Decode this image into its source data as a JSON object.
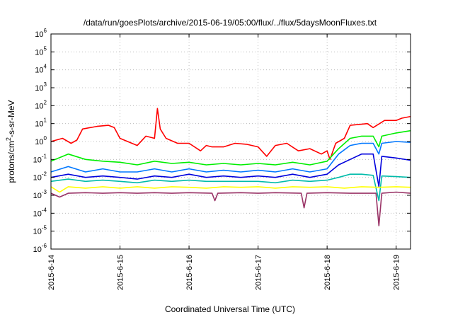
{
  "chart_data": {
    "type": "line",
    "title": "/data/run/goesPlots/archive/2015-06-19/05:00/flux/../flux/5daysMoonFluxes.txt",
    "xlabel": "Coordinated Universal Time (UTC)",
    "ylabel": "protons/cm²-s-sr-MeV",
    "yscale": "log",
    "ylim_exp": [
      -6,
      6
    ],
    "y_ticks": [
      {
        "exp": -6,
        "base": "10",
        "sup": "-6"
      },
      {
        "exp": -5,
        "base": "10",
        "sup": "-5"
      },
      {
        "exp": -4,
        "base": "10",
        "sup": "-4"
      },
      {
        "exp": -3,
        "base": "10",
        "sup": "-3"
      },
      {
        "exp": -2,
        "base": "10",
        "sup": "-2"
      },
      {
        "exp": -1,
        "base": "10",
        "sup": "-1"
      },
      {
        "exp": 0,
        "base": "10",
        "sup": "0"
      },
      {
        "exp": 1,
        "base": "10",
        "sup": "1"
      },
      {
        "exp": 2,
        "base": "10",
        "sup": "2"
      },
      {
        "exp": 3,
        "base": "10",
        "sup": "3"
      },
      {
        "exp": 4,
        "base": "10",
        "sup": "4"
      },
      {
        "exp": 5,
        "base": "10",
        "sup": "5"
      },
      {
        "exp": 6,
        "base": "10",
        "sup": "6"
      }
    ],
    "x_ticks": [
      "2015-6-14",
      "2015-6-15",
      "2015-6-16",
      "2015-6-17",
      "2015-6-18",
      "2015-6-19"
    ],
    "xlim": [
      "2015-06-14 00:00",
      "2015-06-19 05:00"
    ],
    "grid": true,
    "legend": "none",
    "series": [
      {
        "color": "#ff0000",
        "points": [
          [
            "2015-06-14 00:00",
            1.0
          ],
          [
            "2015-06-14 04:00",
            1.5
          ],
          [
            "2015-06-14 07:00",
            0.8
          ],
          [
            "2015-06-14 09:00",
            1.2
          ],
          [
            "2015-06-14 11:00",
            5
          ],
          [
            "2015-06-14 16:00",
            7
          ],
          [
            "2015-06-14 20:00",
            8
          ],
          [
            "2015-06-14 22:00",
            6
          ],
          [
            "2015-06-15 00:00",
            1.5
          ],
          [
            "2015-06-15 06:00",
            0.6
          ],
          [
            "2015-06-15 09:00",
            2
          ],
          [
            "2015-06-15 12:00",
            1.5
          ],
          [
            "2015-06-15 13:00",
            70
          ],
          [
            "2015-06-15 14:00",
            5
          ],
          [
            "2015-06-15 16:00",
            1.5
          ],
          [
            "2015-06-15 20:00",
            0.8
          ],
          [
            "2015-06-16 00:00",
            0.8
          ],
          [
            "2015-06-16 04:00",
            0.3
          ],
          [
            "2015-06-16 06:00",
            0.6
          ],
          [
            "2015-06-16 08:00",
            0.5
          ],
          [
            "2015-06-16 12:00",
            0.5
          ],
          [
            "2015-06-16 16:00",
            0.8
          ],
          [
            "2015-06-16 20:00",
            0.7
          ],
          [
            "2015-06-17 00:00",
            0.5
          ],
          [
            "2015-06-17 03:00",
            0.15
          ],
          [
            "2015-06-17 06:00",
            0.6
          ],
          [
            "2015-06-17 10:00",
            0.8
          ],
          [
            "2015-06-17 14:00",
            0.3
          ],
          [
            "2015-06-17 18:00",
            0.4
          ],
          [
            "2015-06-17 22:00",
            0.2
          ],
          [
            "2015-06-18 00:00",
            0.3
          ],
          [
            "2015-06-18 01:00",
            0.1
          ],
          [
            "2015-06-18 03:00",
            0.8
          ],
          [
            "2015-06-18 06:00",
            1.5
          ],
          [
            "2015-06-18 08:00",
            8
          ],
          [
            "2015-06-18 14:00",
            10
          ],
          [
            "2015-06-18 16:00",
            6
          ],
          [
            "2015-06-18 20:00",
            15
          ],
          [
            "2015-06-19 00:00",
            15
          ],
          [
            "2015-06-19 02:00",
            20
          ],
          [
            "2015-06-19 05:00",
            25
          ]
        ]
      },
      {
        "color": "#00ee00",
        "points": [
          [
            "2015-06-14 00:00",
            0.08
          ],
          [
            "2015-06-14 06:00",
            0.2
          ],
          [
            "2015-06-14 12:00",
            0.1
          ],
          [
            "2015-06-14 18:00",
            0.08
          ],
          [
            "2015-06-15 00:00",
            0.07
          ],
          [
            "2015-06-15 06:00",
            0.05
          ],
          [
            "2015-06-15 12:00",
            0.08
          ],
          [
            "2015-06-15 18:00",
            0.06
          ],
          [
            "2015-06-16 00:00",
            0.07
          ],
          [
            "2015-06-16 06:00",
            0.05
          ],
          [
            "2015-06-16 12:00",
            0.06
          ],
          [
            "2015-06-16 18:00",
            0.05
          ],
          [
            "2015-06-17 00:00",
            0.06
          ],
          [
            "2015-06-17 06:00",
            0.05
          ],
          [
            "2015-06-17 12:00",
            0.07
          ],
          [
            "2015-06-17 18:00",
            0.05
          ],
          [
            "2015-06-18 00:00",
            0.08
          ],
          [
            "2015-06-18 04:00",
            0.4
          ],
          [
            "2015-06-18 08:00",
            1.5
          ],
          [
            "2015-06-18 12:00",
            2
          ],
          [
            "2015-06-18 16:00",
            2
          ],
          [
            "2015-06-18 18:00",
            0.5
          ],
          [
            "2015-06-18 19:00",
            2
          ],
          [
            "2015-06-19 00:00",
            3
          ],
          [
            "2015-06-19 05:00",
            4
          ]
        ]
      },
      {
        "color": "#0000dd",
        "points": [
          [
            "2015-06-14 00:00",
            0.01
          ],
          [
            "2015-06-14 06:00",
            0.015
          ],
          [
            "2015-06-14 12:00",
            0.01
          ],
          [
            "2015-06-14 18:00",
            0.012
          ],
          [
            "2015-06-15 00:00",
            0.01
          ],
          [
            "2015-06-15 06:00",
            0.008
          ],
          [
            "2015-06-15 12:00",
            0.012
          ],
          [
            "2015-06-15 18:00",
            0.01
          ],
          [
            "2015-06-16 00:00",
            0.015
          ],
          [
            "2015-06-16 06:00",
            0.01
          ],
          [
            "2015-06-16 12:00",
            0.012
          ],
          [
            "2015-06-16 18:00",
            0.01
          ],
          [
            "2015-06-17 00:00",
            0.012
          ],
          [
            "2015-06-17 06:00",
            0.01
          ],
          [
            "2015-06-17 12:00",
            0.015
          ],
          [
            "2015-06-17 18:00",
            0.01
          ],
          [
            "2015-06-18 00:00",
            0.015
          ],
          [
            "2015-06-18 04:00",
            0.05
          ],
          [
            "2015-06-18 08:00",
            0.1
          ],
          [
            "2015-06-18 12:00",
            0.2
          ],
          [
            "2015-06-18 16:00",
            0.2
          ],
          [
            "2015-06-18 18:00",
            0.003
          ],
          [
            "2015-06-18 19:00",
            0.15
          ],
          [
            "2015-06-19 00:00",
            0.12
          ],
          [
            "2015-06-19 05:00",
            0.09
          ]
        ]
      },
      {
        "color": "#0077ff",
        "points": [
          [
            "2015-06-14 00:00",
            0.02
          ],
          [
            "2015-06-14 06:00",
            0.04
          ],
          [
            "2015-06-14 12:00",
            0.02
          ],
          [
            "2015-06-14 18:00",
            0.03
          ],
          [
            "2015-06-15 00:00",
            0.02
          ],
          [
            "2015-06-15 06:00",
            0.02
          ],
          [
            "2015-06-15 12:00",
            0.03
          ],
          [
            "2015-06-15 18:00",
            0.02
          ],
          [
            "2015-06-16 00:00",
            0.03
          ],
          [
            "2015-06-16 06:00",
            0.02
          ],
          [
            "2015-06-16 12:00",
            0.025
          ],
          [
            "2015-06-16 18:00",
            0.02
          ],
          [
            "2015-06-17 00:00",
            0.025
          ],
          [
            "2015-06-17 06:00",
            0.02
          ],
          [
            "2015-06-17 12:00",
            0.03
          ],
          [
            "2015-06-17 18:00",
            0.02
          ],
          [
            "2015-06-18 00:00",
            0.03
          ],
          [
            "2015-06-18 04:00",
            0.2
          ],
          [
            "2015-06-18 08:00",
            0.6
          ],
          [
            "2015-06-18 12:00",
            0.8
          ],
          [
            "2015-06-18 16:00",
            0.8
          ],
          [
            "2015-06-18 18:00",
            0.2
          ],
          [
            "2015-06-18 19:00",
            0.8
          ],
          [
            "2015-06-19 00:00",
            1.0
          ],
          [
            "2015-06-19 05:00",
            0.9
          ]
        ]
      },
      {
        "color": "#00bbaa",
        "points": [
          [
            "2015-06-14 00:00",
            0.006
          ],
          [
            "2015-06-14 06:00",
            0.008
          ],
          [
            "2015-06-14 12:00",
            0.006
          ],
          [
            "2015-06-14 18:00",
            0.007
          ],
          [
            "2015-06-15 00:00",
            0.006
          ],
          [
            "2015-06-15 06:00",
            0.005
          ],
          [
            "2015-06-15 12:00",
            0.007
          ],
          [
            "2015-06-15 18:00",
            0.006
          ],
          [
            "2015-06-16 00:00",
            0.007
          ],
          [
            "2015-06-16 06:00",
            0.006
          ],
          [
            "2015-06-16 12:00",
            0.006
          ],
          [
            "2015-06-16 18:00",
            0.006
          ],
          [
            "2015-06-17 00:00",
            0.006
          ],
          [
            "2015-06-17 06:00",
            0.005
          ],
          [
            "2015-06-17 12:00",
            0.007
          ],
          [
            "2015-06-17 18:00",
            0.006
          ],
          [
            "2015-06-18 00:00",
            0.007
          ],
          [
            "2015-06-18 04:00",
            0.01
          ],
          [
            "2015-06-18 08:00",
            0.015
          ],
          [
            "2015-06-18 12:00",
            0.015
          ],
          [
            "2015-06-18 16:00",
            0.013
          ],
          [
            "2015-06-18 18:00",
            0.0005
          ],
          [
            "2015-06-18 19:00",
            0.012
          ],
          [
            "2015-06-19 00:00",
            0.011
          ],
          [
            "2015-06-19 05:00",
            0.01
          ]
        ]
      },
      {
        "color": "#ffff00",
        "points": [
          [
            "2015-06-14 00:00",
            0.003
          ],
          [
            "2015-06-14 03:00",
            0.0015
          ],
          [
            "2015-06-14 06:00",
            0.003
          ],
          [
            "2015-06-14 12:00",
            0.0025
          ],
          [
            "2015-06-14 18:00",
            0.003
          ],
          [
            "2015-06-15 00:00",
            0.0025
          ],
          [
            "2015-06-15 06:00",
            0.003
          ],
          [
            "2015-06-15 12:00",
            0.0025
          ],
          [
            "2015-06-15 18:00",
            0.003
          ],
          [
            "2015-06-16 00:00",
            0.0028
          ],
          [
            "2015-06-16 06:00",
            0.0025
          ],
          [
            "2015-06-16 12:00",
            0.003
          ],
          [
            "2015-06-16 18:00",
            0.0028
          ],
          [
            "2015-06-17 00:00",
            0.003
          ],
          [
            "2015-06-17 06:00",
            0.0025
          ],
          [
            "2015-06-17 12:00",
            0.003
          ],
          [
            "2015-06-17 18:00",
            0.0028
          ],
          [
            "2015-06-18 00:00",
            0.003
          ],
          [
            "2015-06-18 06:00",
            0.0025
          ],
          [
            "2015-06-18 12:00",
            0.003
          ],
          [
            "2015-06-18 18:00",
            0.0028
          ],
          [
            "2015-06-19 00:00",
            0.003
          ],
          [
            "2015-06-19 05:00",
            0.0028
          ]
        ]
      },
      {
        "color": "#993366",
        "points": [
          [
            "2015-06-14 00:00",
            0.0013
          ],
          [
            "2015-06-14 03:00",
            0.0008
          ],
          [
            "2015-06-14 06:00",
            0.0013
          ],
          [
            "2015-06-14 12:00",
            0.0014
          ],
          [
            "2015-06-14 18:00",
            0.0013
          ],
          [
            "2015-06-15 00:00",
            0.0014
          ],
          [
            "2015-06-15 06:00",
            0.0013
          ],
          [
            "2015-06-15 12:00",
            0.0014
          ],
          [
            "2015-06-15 18:00",
            0.0013
          ],
          [
            "2015-06-16 00:00",
            0.0014
          ],
          [
            "2015-06-16 08:00",
            0.0013
          ],
          [
            "2015-06-16 09:00",
            0.0005
          ],
          [
            "2015-06-16 10:00",
            0.0013
          ],
          [
            "2015-06-16 18:00",
            0.0014
          ],
          [
            "2015-06-17 00:00",
            0.0013
          ],
          [
            "2015-06-17 06:00",
            0.0014
          ],
          [
            "2015-06-17 15:00",
            0.0013
          ],
          [
            "2015-06-17 16:00",
            0.0002
          ],
          [
            "2015-06-17 17:00",
            0.0013
          ],
          [
            "2015-06-18 00:00",
            0.0014
          ],
          [
            "2015-06-18 08:00",
            0.0013
          ],
          [
            "2015-06-18 17:00",
            0.0013
          ],
          [
            "2015-06-18 18:00",
            2e-05
          ],
          [
            "2015-06-18 19:00",
            0.0013
          ],
          [
            "2015-06-19 00:00",
            0.0015
          ],
          [
            "2015-06-19 05:00",
            0.0013
          ]
        ]
      }
    ]
  }
}
